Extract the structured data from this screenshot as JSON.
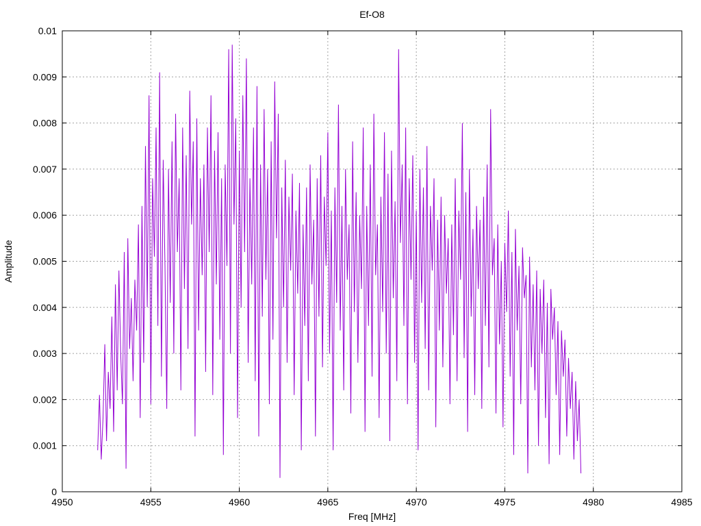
{
  "chart_data": {
    "type": "line",
    "title": "Ef-O8",
    "xlabel": "Freq [MHz]",
    "ylabel": "Amplitude",
    "xlim": [
      4950,
      4985
    ],
    "ylim": [
      0,
      0.01
    ],
    "xticks": [
      4950,
      4955,
      4960,
      4965,
      4970,
      4975,
      4980,
      4985
    ],
    "xtick_labels": [
      "4950",
      "4955",
      "4960",
      "4965",
      "4970",
      "4975",
      "4980",
      "4985"
    ],
    "yticks": [
      0,
      0.001,
      0.002,
      0.003,
      0.004,
      0.005,
      0.006,
      0.007,
      0.008,
      0.009,
      0.01
    ],
    "ytick_labels": [
      "0",
      "0.001",
      "0.002",
      "0.003",
      "0.004",
      "0.005",
      "0.006",
      "0.007",
      "0.008",
      "0.009",
      "0.01"
    ],
    "grid": true,
    "series_color": "#9400d3",
    "series": [
      {
        "x_start": 4952.0,
        "x_step": 0.1,
        "values": [
          0.0009,
          0.0021,
          0.0007,
          0.0016,
          0.0032,
          0.0011,
          0.0026,
          0.0018,
          0.0038,
          0.0013,
          0.0045,
          0.0022,
          0.0048,
          0.003,
          0.0019,
          0.0052,
          0.0005,
          0.0055,
          0.0031,
          0.0042,
          0.0024,
          0.0046,
          0.0035,
          0.0058,
          0.0016,
          0.0062,
          0.0028,
          0.0075,
          0.004,
          0.0086,
          0.0019,
          0.0068,
          0.0051,
          0.0079,
          0.0036,
          0.0091,
          0.0025,
          0.0072,
          0.0049,
          0.0018,
          0.007,
          0.0041,
          0.0076,
          0.003,
          0.0082,
          0.0052,
          0.0068,
          0.0022,
          0.0079,
          0.0044,
          0.0073,
          0.0031,
          0.0087,
          0.0058,
          0.0076,
          0.0012,
          0.0081,
          0.0035,
          0.0068,
          0.0047,
          0.0071,
          0.0026,
          0.0079,
          0.0052,
          0.0086,
          0.0021,
          0.0074,
          0.0045,
          0.0078,
          0.0033,
          0.0068,
          0.0008,
          0.0071,
          0.0049,
          0.0096,
          0.003,
          0.0097,
          0.0058,
          0.0081,
          0.0016,
          0.0074,
          0.004,
          0.0086,
          0.0052,
          0.0094,
          0.0028,
          0.0068,
          0.0045,
          0.0079,
          0.0024,
          0.0088,
          0.0012,
          0.0071,
          0.0038,
          0.0083,
          0.0046,
          0.007,
          0.0019,
          0.0076,
          0.0033,
          0.0089,
          0.0055,
          0.0082,
          0.0003,
          0.0066,
          0.004,
          0.0072,
          0.0028,
          0.0064,
          0.0048,
          0.0069,
          0.0021,
          0.0061,
          0.0043,
          0.0067,
          0.0009,
          0.0058,
          0.0036,
          0.0066,
          0.0024,
          0.0071,
          0.0045,
          0.0059,
          0.0012,
          0.0068,
          0.0038,
          0.0073,
          0.0027,
          0.0064,
          0.0049,
          0.0078,
          0.003,
          0.0061,
          0.0009,
          0.0066,
          0.0041,
          0.0084,
          0.0035,
          0.0062,
          0.0022,
          0.007,
          0.0046,
          0.0058,
          0.0017,
          0.0076,
          0.0039,
          0.0065,
          0.0028,
          0.006,
          0.0044,
          0.0079,
          0.0013,
          0.0062,
          0.0036,
          0.0071,
          0.0025,
          0.0082,
          0.0047,
          0.0058,
          0.0016,
          0.0064,
          0.0039,
          0.0078,
          0.003,
          0.0069,
          0.0011,
          0.0074,
          0.0042,
          0.0063,
          0.0024,
          0.0096,
          0.0054,
          0.0071,
          0.0036,
          0.0079,
          0.0019,
          0.0068,
          0.0046,
          0.0073,
          0.0028,
          0.0061,
          0.0009,
          0.007,
          0.0041,
          0.0066,
          0.0031,
          0.0075,
          0.0022,
          0.0062,
          0.0048,
          0.0068,
          0.0014,
          0.0059,
          0.0035,
          0.0064,
          0.0027,
          0.006,
          0.0043,
          0.0055,
          0.0019,
          0.0058,
          0.0034,
          0.0068,
          0.0024,
          0.0061,
          0.0046,
          0.008,
          0.0029,
          0.0065,
          0.0013,
          0.007,
          0.0038,
          0.0057,
          0.0021,
          0.0062,
          0.0044,
          0.0059,
          0.0018,
          0.0064,
          0.0036,
          0.0071,
          0.0027,
          0.0083,
          0.0047,
          0.0055,
          0.0017,
          0.0058,
          0.0032,
          0.005,
          0.0014,
          0.0054,
          0.0039,
          0.0061,
          0.0025,
          0.0052,
          0.0008,
          0.0057,
          0.0035,
          0.0049,
          0.0019,
          0.0053,
          0.0042,
          0.0047,
          0.0004,
          0.0051,
          0.0027,
          0.0045,
          0.0022,
          0.0048,
          0.001,
          0.0044,
          0.003,
          0.0046,
          0.0016,
          0.0041,
          0.0006,
          0.0044,
          0.0033,
          0.004,
          0.0021,
          0.0037,
          0.0008,
          0.0035,
          0.0025,
          0.0033,
          0.0012,
          0.0029,
          0.0018,
          0.0026,
          0.0007,
          0.0024,
          0.0011,
          0.002,
          0.0004
        ]
      }
    ]
  }
}
